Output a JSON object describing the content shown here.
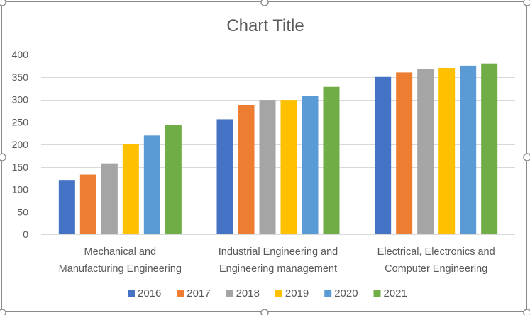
{
  "chart_data": {
    "type": "bar",
    "title": "Chart Title",
    "xlabel": "",
    "ylabel": "",
    "ylim": [
      0,
      400
    ],
    "yticks": [
      0,
      50,
      100,
      150,
      200,
      250,
      300,
      350,
      400
    ],
    "grid": true,
    "legend_position": "bottom",
    "categories": [
      [
        "Mechanical and",
        "Manufacturing Engineering"
      ],
      [
        "Industrial Engineering and",
        "Engineering management"
      ],
      [
        "Electrical, Electronics and",
        "Computer Engineering"
      ]
    ],
    "series": [
      {
        "name": "2016",
        "color": "#4472C4",
        "values": [
          121,
          256,
          350
        ]
      },
      {
        "name": "2017",
        "color": "#ED7D31",
        "values": [
          133,
          288,
          360
        ]
      },
      {
        "name": "2018",
        "color": "#A5A5A5",
        "values": [
          158,
          299,
          367
        ]
      },
      {
        "name": "2019",
        "color": "#FFC000",
        "values": [
          200,
          299,
          370
        ]
      },
      {
        "name": "2020",
        "color": "#5B9BD5",
        "values": [
          220,
          308,
          375
        ]
      },
      {
        "name": "2021",
        "color": "#70AD47",
        "values": [
          244,
          328,
          380
        ]
      }
    ]
  }
}
